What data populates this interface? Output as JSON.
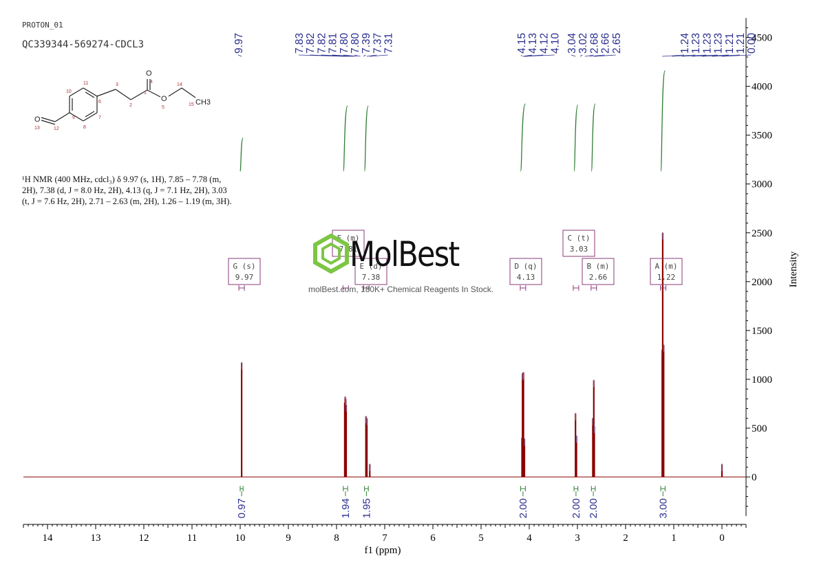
{
  "header": {
    "experiment": "PROTON_01",
    "sample": "QC339344-569274-CDCL3"
  },
  "nmr_description": "¹H NMR (400 MHz, cdcl₃) δ 9.97 (s, 1H), 7.85 – 7.78 (m, 2H), 7.38 (d, J = 8.0 Hz, 2H), 4.13 (q, J = 7.1 Hz, 2H), 3.03 (t, J = 7.6 Hz, 2H), 2.71 – 2.63 (m, 2H), 1.26 – 1.19 (m, 3H).",
  "watermark": {
    "brand": "MolBest",
    "tagline": "molBest.com, 180K+ Chemical Reagents In Stock."
  },
  "structure": {
    "atoms": [
      {
        "label": "O",
        "number": "4"
      },
      {
        "label": "O",
        "number": "5"
      },
      {
        "label": "CH3",
        "number": "15"
      },
      {
        "label": "O",
        "number": "13"
      }
    ],
    "numbers": [
      "1",
      "2",
      "3",
      "6",
      "7",
      "8",
      "9",
      "10",
      "11",
      "12",
      "14"
    ]
  },
  "chart_data": {
    "type": "line",
    "title": "",
    "xlabel": "f1 (ppm)",
    "ylabel": "Intensity",
    "xlim": [
      14.5,
      -0.5
    ],
    "ylim": [
      -400,
      4700
    ],
    "x_ticks": [
      14,
      13,
      12,
      11,
      10,
      9,
      8,
      7,
      6,
      5,
      4,
      3,
      2,
      1,
      0
    ],
    "y_ticks": [
      0,
      500,
      1000,
      1500,
      2000,
      2500,
      3000,
      3500,
      4000,
      4500
    ],
    "colors": {
      "spectrum": "#8b0000",
      "integral": "#2e7d32",
      "peak_labels": "#2b2f8f",
      "multiplet_boxes": "#8a3a7a"
    },
    "peaks": [
      {
        "ppm": 9.97,
        "height": 1170
      },
      {
        "ppm": 7.83,
        "height": 760
      },
      {
        "ppm": 7.82,
        "height": 820
      },
      {
        "ppm": 7.81,
        "height": 800
      },
      {
        "ppm": 7.8,
        "height": 740
      },
      {
        "ppm": 7.39,
        "height": 620
      },
      {
        "ppm": 7.37,
        "height": 600
      },
      {
        "ppm": 7.31,
        "height": 130
      },
      {
        "ppm": 4.15,
        "height": 400
      },
      {
        "ppm": 4.14,
        "height": 1060
      },
      {
        "ppm": 4.12,
        "height": 1070
      },
      {
        "ppm": 4.1,
        "height": 390
      },
      {
        "ppm": 3.04,
        "height": 650
      },
      {
        "ppm": 3.02,
        "height": 420
      },
      {
        "ppm": 2.68,
        "height": 600
      },
      {
        "ppm": 2.66,
        "height": 990
      },
      {
        "ppm": 2.65,
        "height": 520
      },
      {
        "ppm": 1.24,
        "height": 1300
      },
      {
        "ppm": 1.23,
        "height": 2500
      },
      {
        "ppm": 1.21,
        "height": 1350
      },
      {
        "ppm": 0.0,
        "height": 130
      }
    ],
    "peak_labels": [
      {
        "group": [
          9.97
        ],
        "texts": [
          "9.97"
        ]
      },
      {
        "group": [
          7.83,
          7.31
        ],
        "texts": [
          "7.83",
          "7.82",
          "7.82",
          "7.81",
          "7.80",
          "7.80",
          "7.39",
          "7.37",
          "7.31"
        ]
      },
      {
        "group": [
          4.15,
          4.1
        ],
        "texts": [
          "4.15",
          "4.13",
          "4.12",
          "4.10"
        ]
      },
      {
        "group": [
          3.04,
          2.65
        ],
        "texts": [
          "3.04",
          "3.02",
          "2.68",
          "2.66",
          "2.65"
        ]
      },
      {
        "group": [
          1.24,
          0.0
        ],
        "texts": [
          "1.24",
          "1.23",
          "1.23",
          "1.23",
          "1.21",
          "1.21",
          "0.00"
        ]
      }
    ],
    "integrals": [
      {
        "from": 10.0,
        "to": 9.94,
        "value": "0.97",
        "curve_top": 3470
      },
      {
        "from": 7.86,
        "to": 7.77,
        "value": "1.94",
        "curve_top": 3800
      },
      {
        "from": 7.42,
        "to": 7.34,
        "value": "1.95",
        "curve_top": 3800
      },
      {
        "from": 4.18,
        "to": 4.08,
        "value": "2.00",
        "curve_top": 3820
      },
      {
        "from": 3.07,
        "to": 2.99,
        "value": "2.00",
        "curve_top": 3810
      },
      {
        "from": 2.71,
        "to": 2.63,
        "value": "2.00",
        "curve_top": 3820
      },
      {
        "from": 1.27,
        "to": 1.18,
        "value": "3.00",
        "curve_top": 4160
      }
    ],
    "multiplets": [
      {
        "letter": "G",
        "type": "(s)",
        "shift": "9.97",
        "ppm": 9.97
      },
      {
        "letter": "F",
        "type": "(m)",
        "shift": "7.81",
        "ppm": 7.81
      },
      {
        "letter": "E",
        "type": "(d)",
        "shift": "7.38",
        "ppm": 7.38
      },
      {
        "letter": "D",
        "type": "(q)",
        "shift": "4.13",
        "ppm": 4.13
      },
      {
        "letter": "C",
        "type": "(t)",
        "shift": "3.03",
        "ppm": 3.03
      },
      {
        "letter": "B",
        "type": "(m)",
        "shift": "2.66",
        "ppm": 2.66
      },
      {
        "letter": "A",
        "type": "(m)",
        "shift": "1.22",
        "ppm": 1.22
      }
    ]
  }
}
